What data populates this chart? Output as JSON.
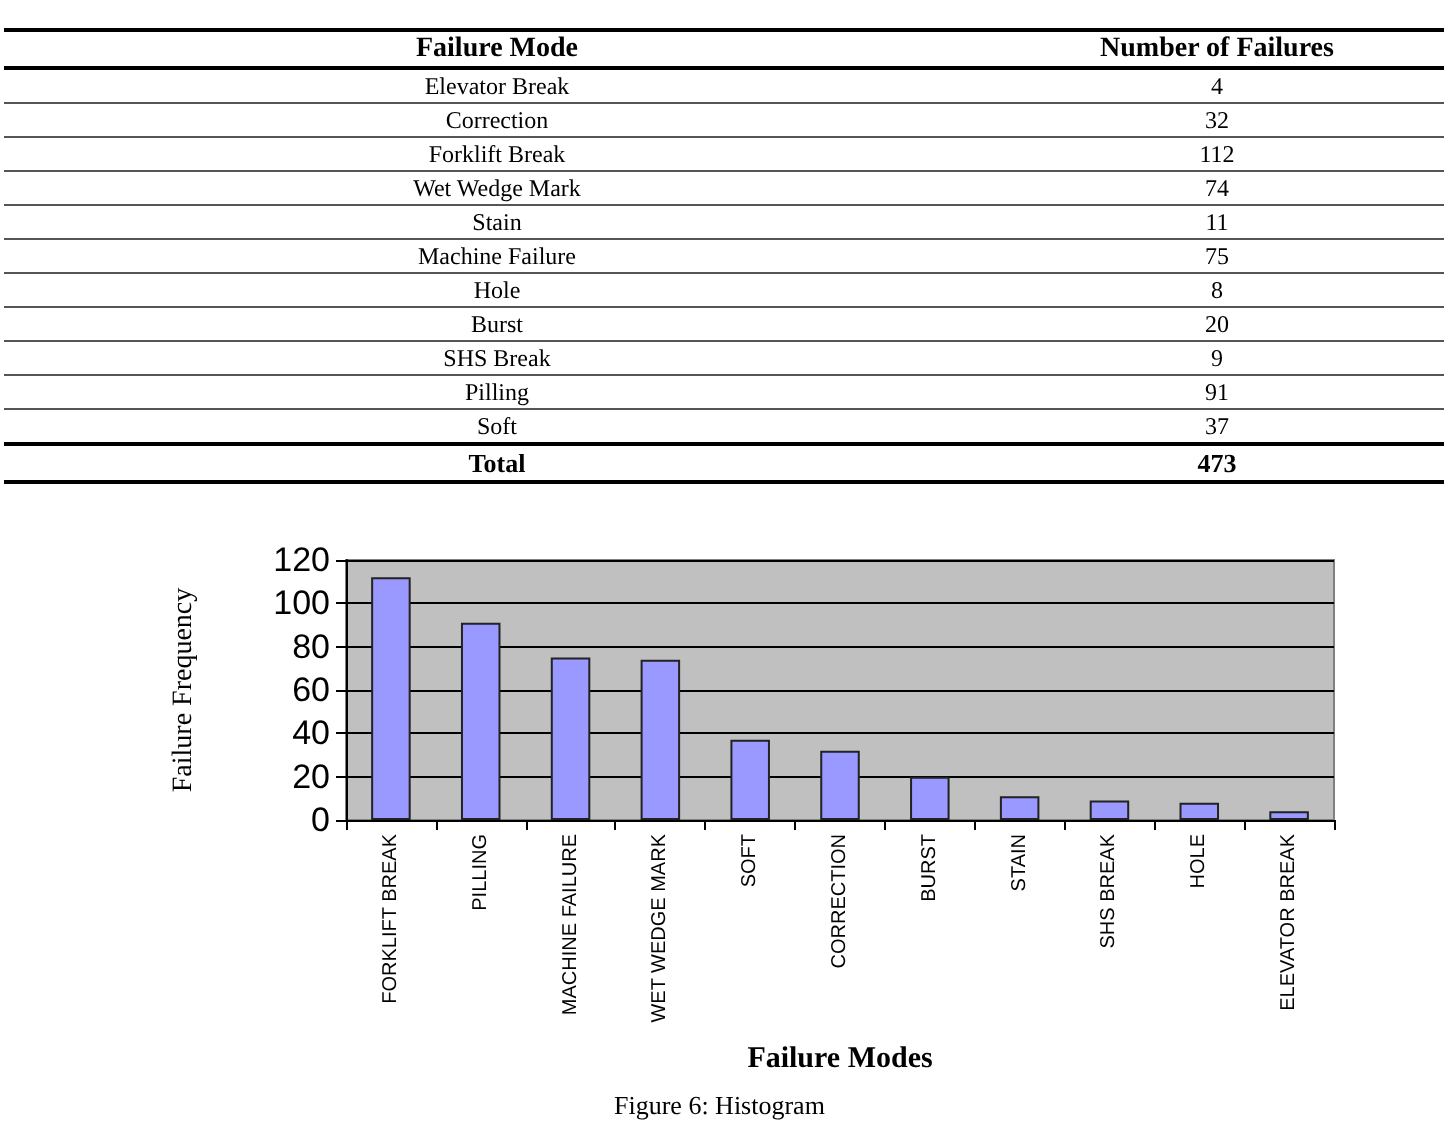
{
  "chart_data": [
    {
      "type": "other",
      "xlabel": "Failure Mode",
      "ylabel": "Number of Failures",
      "categories": [
        "Elevator Break",
        "Correction",
        "Forklift Break",
        "Wet Wedge Mark",
        "Stain",
        "Machine Failure",
        "Hole",
        "Burst",
        "SHS Break",
        "Pilling",
        "Soft"
      ],
      "values": [
        4,
        32,
        112,
        74,
        11,
        75,
        8,
        20,
        9,
        91,
        37
      ],
      "data_labels": true,
      "annotations": [
        "Total"
      ],
      "totals": [
        "473"
      ]
    },
    {
      "type": "bar",
      "categories": [
        "FORKLIFT BREAK",
        "PILLING",
        "MACHINE FAILURE",
        "WET WEDGE MARK",
        "SOFT",
        "CORRECTION",
        "BURST",
        "STAIN",
        "SHS BREAK",
        "HOLE",
        "ELEVATOR BREAK"
      ],
      "values": [
        112,
        91,
        75,
        74,
        37,
        32,
        20,
        11,
        9,
        8,
        4
      ],
      "color": "#9999ff",
      "xlabel": "Failure Modes",
      "ylabel": "Failure Frequency",
      "ylim": [
        0,
        120
      ],
      "yticks": [
        0,
        20,
        40,
        60,
        80,
        100,
        120
      ],
      "grid": "y",
      "annotations": [
        "Figure 6: Histogram"
      ]
    }
  ]
}
